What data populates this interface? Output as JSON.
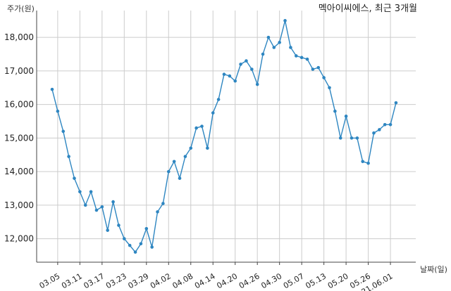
{
  "chart_data": {
    "type": "line",
    "title": "멕아이씨에스, 최근 3개월",
    "ylabel": "주가(원)",
    "xlabel": "날짜(일)",
    "ylim": [
      11300,
      18800
    ],
    "yticks": [
      12000,
      13000,
      14000,
      15000,
      16000,
      17000,
      18000
    ],
    "ytick_labels": [
      "12,000",
      "13,000",
      "14,000",
      "15,000",
      "16,000",
      "17,000",
      "18,000"
    ],
    "xticks": [
      {
        "index": 1,
        "label": "03.05"
      },
      {
        "index": 5,
        "label": "03.11"
      },
      {
        "index": 9,
        "label": "03.17"
      },
      {
        "index": 13,
        "label": "03.23"
      },
      {
        "index": 17,
        "label": "03.29"
      },
      {
        "index": 21,
        "label": "04.02"
      },
      {
        "index": 25,
        "label": "04.08"
      },
      {
        "index": 29,
        "label": "04.14"
      },
      {
        "index": 33,
        "label": "04.20"
      },
      {
        "index": 37,
        "label": "04.26"
      },
      {
        "index": 41,
        "label": "04.30"
      },
      {
        "index": 45,
        "label": "05.07"
      },
      {
        "index": 49,
        "label": "05.13"
      },
      {
        "index": 53,
        "label": "05.20"
      },
      {
        "index": 57,
        "label": "05.26"
      },
      {
        "index": 61,
        "label": "21.06.01"
      }
    ],
    "grid": true,
    "color": "#2e86c1",
    "series": [
      {
        "values": [
          16450,
          15800,
          15200,
          14450,
          13800,
          13400,
          13000,
          13400,
          12850,
          12950,
          12250,
          13100,
          12400,
          12000,
          11800,
          11600,
          11850,
          12300,
          11750,
          12800,
          13050,
          14000,
          14300,
          13800,
          14450,
          14700,
          15300,
          15350,
          14700,
          15750,
          16150,
          16900,
          16850,
          16700,
          17200,
          17300,
          17050,
          16600,
          17500,
          18000,
          17700,
          17850,
          18500,
          17700,
          17450,
          17400,
          17350,
          17050,
          17100,
          16800,
          16500,
          15800,
          15000,
          15650,
          15000,
          15000,
          14300,
          14250,
          15150,
          15250,
          15400,
          15400,
          16050
        ]
      }
    ]
  }
}
